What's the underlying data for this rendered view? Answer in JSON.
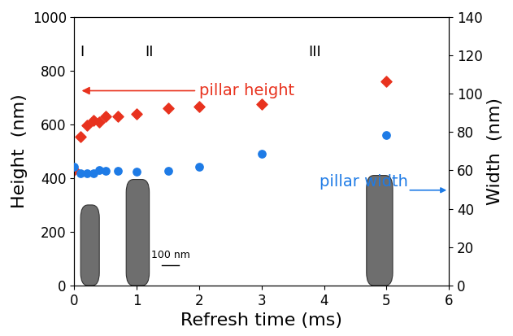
{
  "chart_data": {
    "type": "scatter",
    "x_label": "Refresh time (ms)",
    "y_label": "Height  (nm)",
    "y2_label": "Width  (nm)",
    "xlim": [
      0,
      6
    ],
    "xticks": [
      0,
      1,
      2,
      3,
      4,
      5,
      6
    ],
    "ylim": [
      0,
      1000
    ],
    "yticks": [
      0,
      200,
      400,
      600,
      800,
      1000
    ],
    "y2lim": [
      0,
      140
    ],
    "y2ticks": [
      0,
      20,
      40,
      60,
      80,
      100,
      120,
      140
    ],
    "grid": false,
    "annotations": [
      "I",
      "II",
      "III",
      "pillar height",
      "pillar width",
      "100 nm"
    ],
    "series": [
      {
        "name": "pillar height",
        "color": "#e8321e",
        "marker": "diamond",
        "axis": "y",
        "x": [
          0,
          0.1,
          0.2,
          0.3,
          0.4,
          0.5,
          0.7,
          1.0,
          1.5,
          2.0,
          3.0,
          5.0
        ],
        "values": [
          430,
          555,
          595,
          615,
          610,
          630,
          630,
          640,
          660,
          665,
          675,
          760
        ]
      },
      {
        "name": "pillar width",
        "color": "#1e7be6",
        "marker": "circle",
        "axis": "y2",
        "x": [
          0,
          0.1,
          0.2,
          0.3,
          0.4,
          0.5,
          0.7,
          1.0,
          1.5,
          2.0,
          3.0,
          5.0
        ],
        "values": [
          62,
          58.5,
          58.7,
          58.5,
          60.3,
          59.6,
          59.6,
          59.5,
          59.6,
          62,
          68.6,
          78.5
        ]
      }
    ]
  }
}
